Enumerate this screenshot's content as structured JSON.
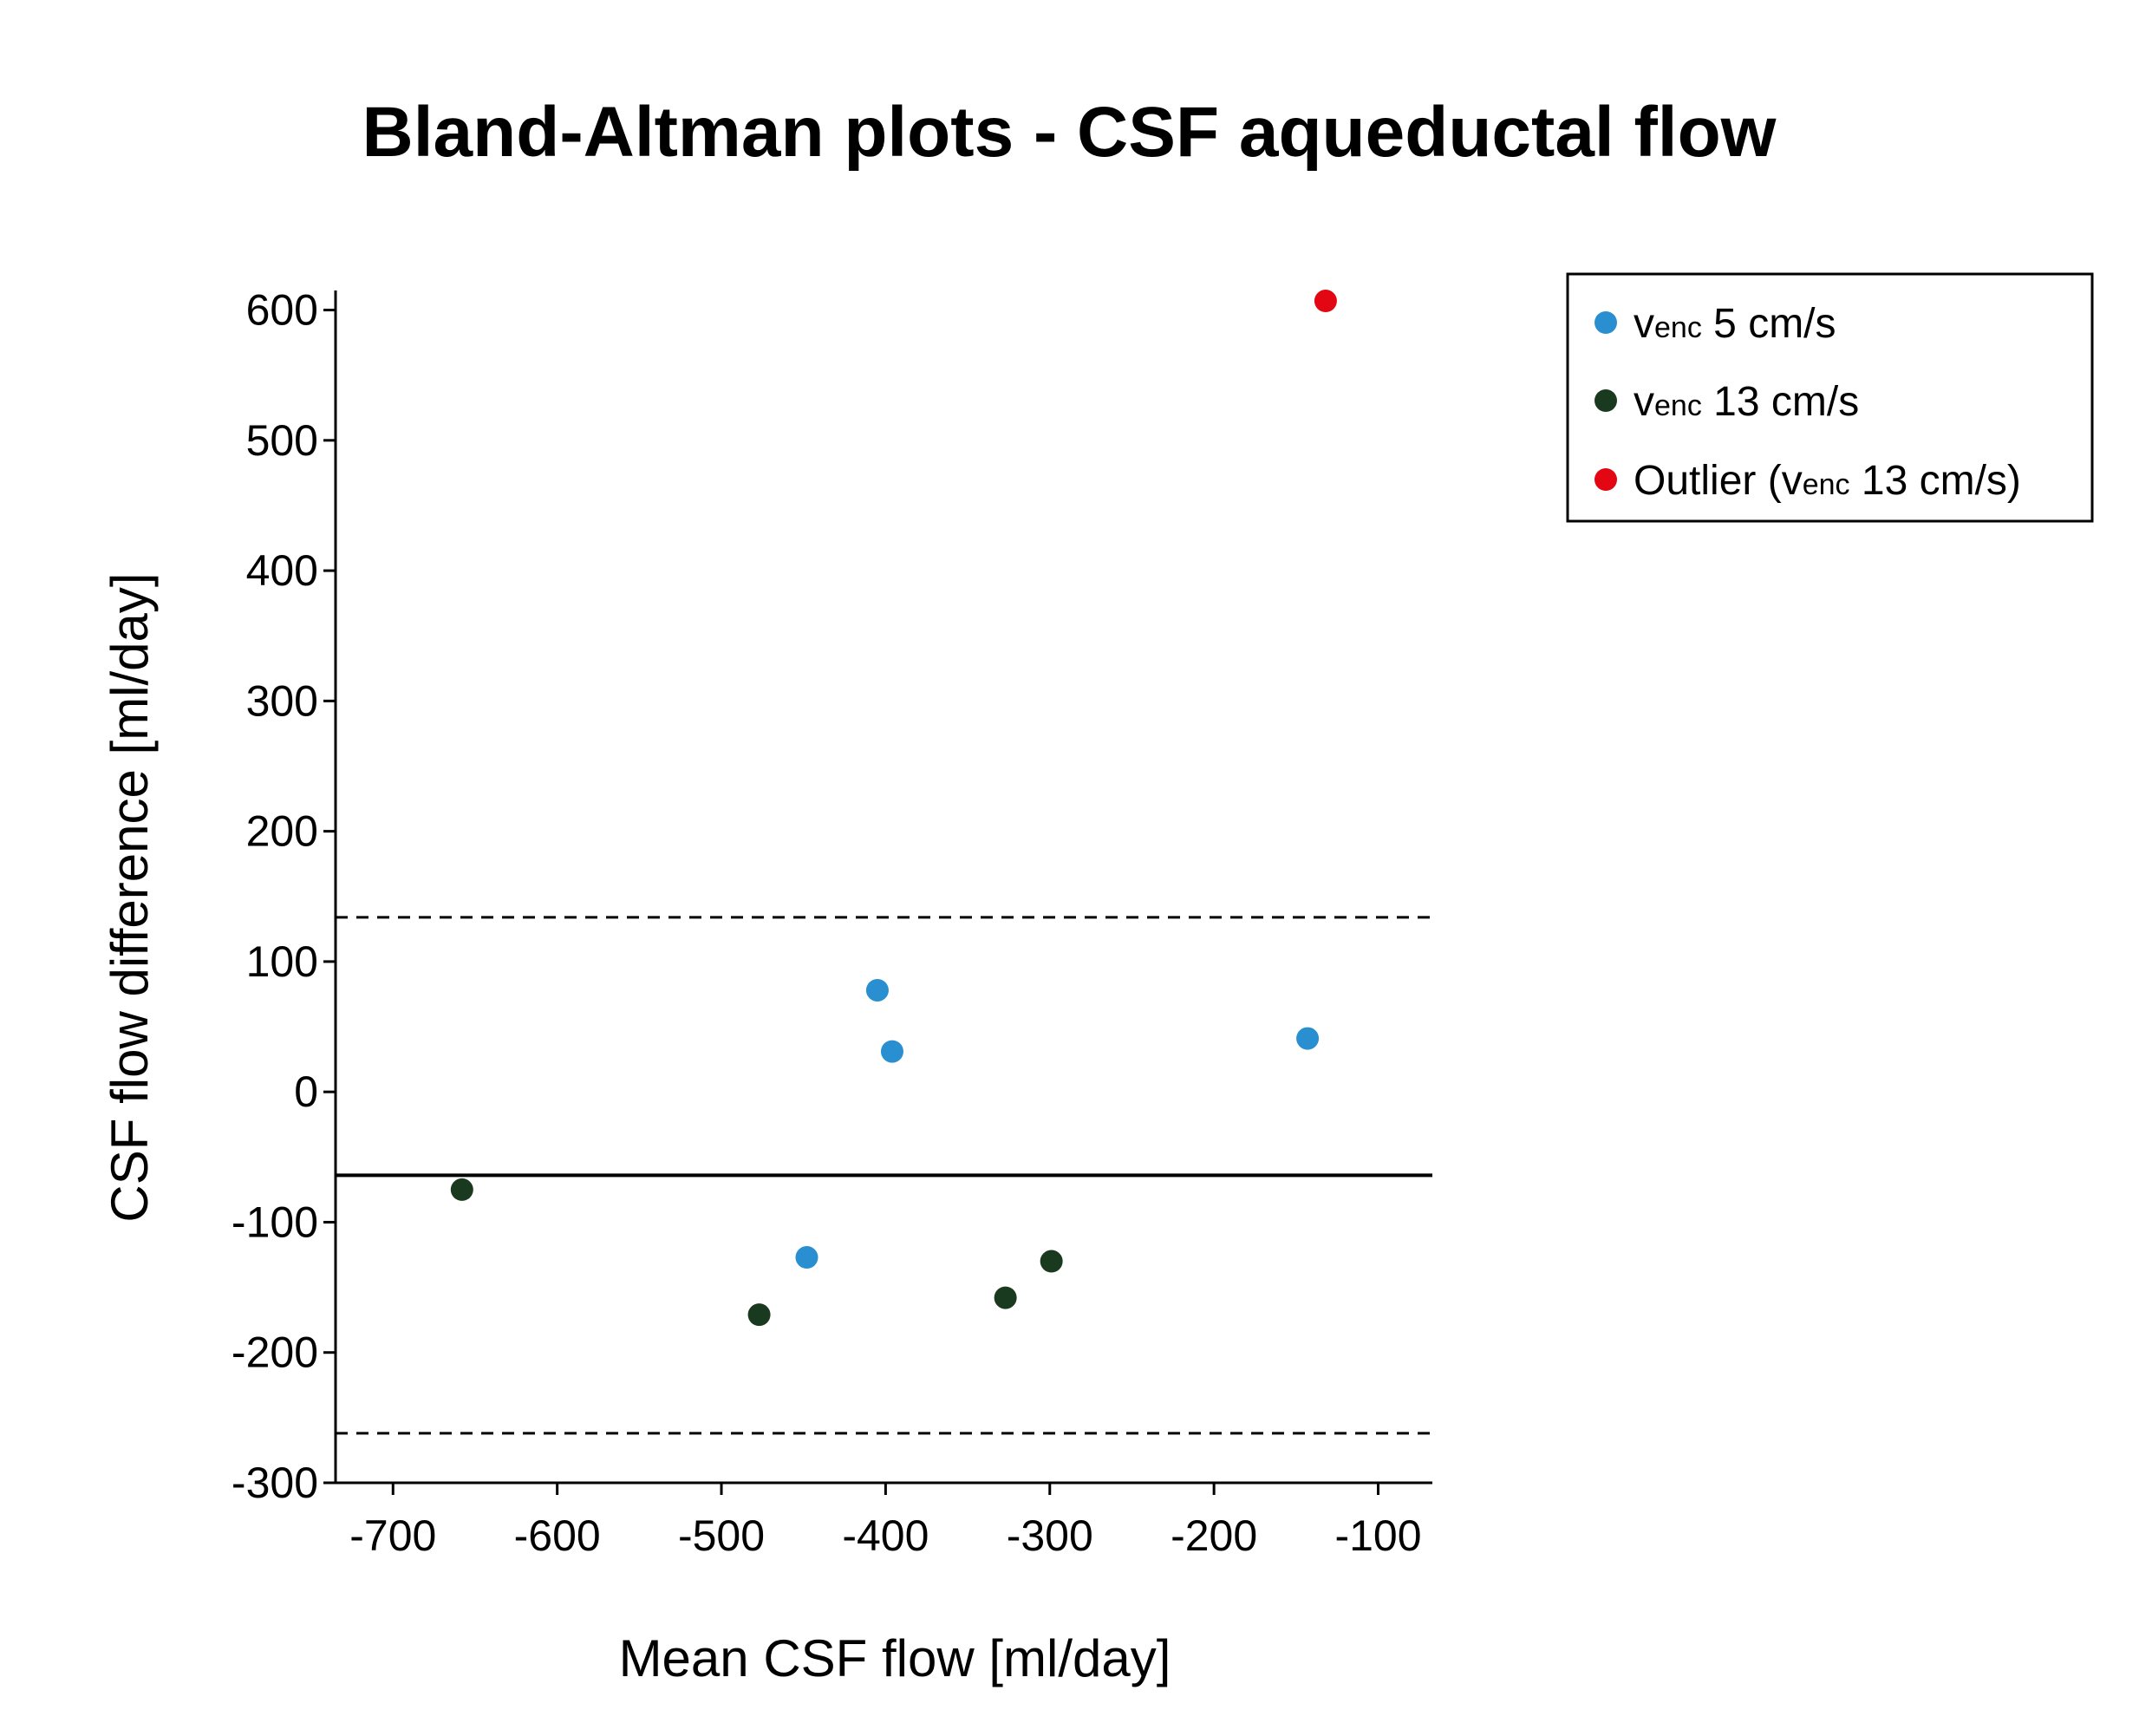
{
  "chart_data": {
    "type": "scatter",
    "title": "Bland-Altman plots - CSF aqueductal flow",
    "xlabel": "Mean CSF flow [ml/day]",
    "ylabel": "CSF flow difference [ml/day]",
    "xlim": [
      -735,
      -67
    ],
    "ylim": [
      -300,
      615
    ],
    "xticks": [
      -700,
      -600,
      -500,
      -400,
      -300,
      -200,
      -100
    ],
    "yticks": [
      600,
      500,
      400,
      300,
      200,
      100,
      0,
      -100,
      -200,
      -300
    ],
    "xtick_labels": [
      "-700",
      "-600",
      "-500",
      "-400",
      "-300",
      "-200",
      "-100"
    ],
    "ytick_labels": [
      "600",
      "500",
      "400",
      "300",
      "200",
      "100",
      "0",
      "-100",
      "-200",
      "-300"
    ],
    "mean_line": -64,
    "limits_of_agreement": [
      134,
      -262
    ],
    "legend_position": "top-right",
    "series": [
      {
        "name": "venc 5 cm/s",
        "label_main": "v",
        "label_sub": "enc",
        "label_rest": " 5 cm/s",
        "color": "#2a8fd0",
        "points": [
          {
            "x": -405,
            "y": 78
          },
          {
            "x": -396,
            "y": 31
          },
          {
            "x": -448,
            "y": -127
          },
          {
            "x": -143,
            "y": 41
          }
        ]
      },
      {
        "name": "venc 13 cm/s",
        "label_main": "v",
        "label_sub": "enc",
        "label_rest": " 13 cm/s",
        "color": "#1a3a1f",
        "points": [
          {
            "x": -658,
            "y": -75
          },
          {
            "x": -477,
            "y": -171
          },
          {
            "x": -327,
            "y": -158
          },
          {
            "x": -299,
            "y": -130
          }
        ]
      },
      {
        "name": "Outlier (venc 13 cm/s)",
        "label_prefix": "Outlier (",
        "label_main": "v",
        "label_sub": "enc",
        "label_rest": " 13 cm/s)",
        "color": "#e30613",
        "points": [
          {
            "x": -132,
            "y": 607
          }
        ]
      }
    ]
  }
}
